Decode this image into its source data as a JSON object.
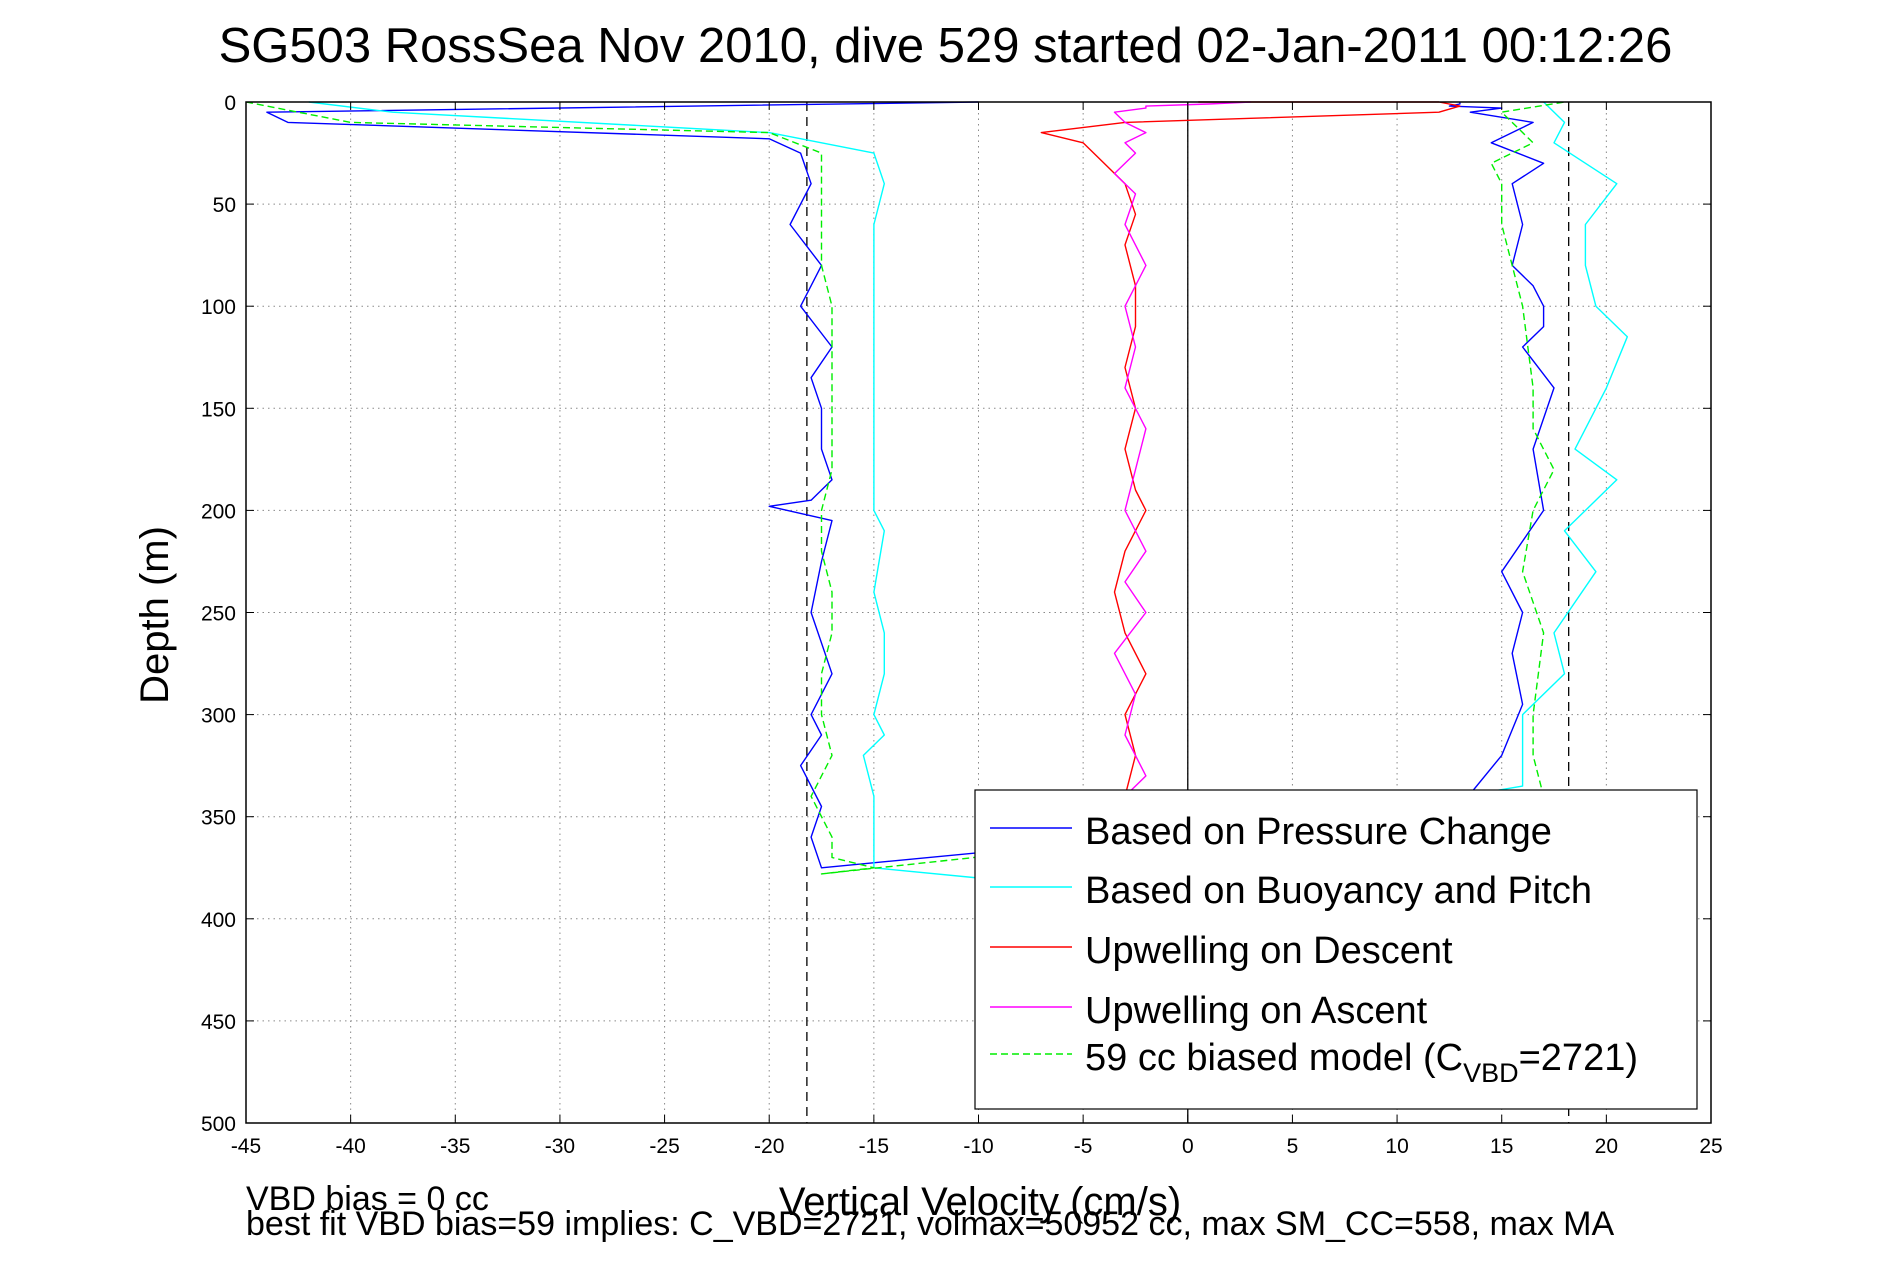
{
  "title": "SG503 RossSea Nov 2010, dive 529 started 02-Jan-2011 00:12:26",
  "footer_line1": "VBD bias = 0 cc",
  "footer_line2": "best fit VBD bias=59 implies: C_VBD=2721, volmax=50952 cc, max SM_CC=558, max MA",
  "chart_data": {
    "type": "line",
    "xlabel": "Vertical Velocity (cm/s)",
    "ylabel": "Depth (m)",
    "xlim": [
      -45,
      25
    ],
    "ylim": [
      0,
      500
    ],
    "y_reversed": true,
    "grid": true,
    "xticks": [
      -45,
      -40,
      -35,
      -30,
      -25,
      -20,
      -15,
      -10,
      -5,
      0,
      5,
      10,
      15,
      20,
      25
    ],
    "yticks": [
      0,
      50,
      100,
      150,
      200,
      250,
      300,
      350,
      400,
      450,
      500
    ],
    "legend_position": "lower-right",
    "reference_lines": [
      {
        "x": -18.2,
        "style": "dashed",
        "color": "#000000"
      },
      {
        "x": 18.2,
        "style": "dashed",
        "color": "#000000"
      },
      {
        "x": 0,
        "style": "solid",
        "color": "#000000"
      }
    ],
    "series": [
      {
        "name": "Based on Pressure Change",
        "color": "#0000ff",
        "style": "solid",
        "x": [
          -10,
          -44,
          -43,
          -20,
          -18.5,
          -18,
          -19,
          -17.5,
          -18.5,
          -17,
          -18,
          -17.5,
          -17.5,
          -17,
          -18,
          -20,
          -17,
          -17.5,
          -18,
          -17,
          -18,
          -17.5,
          -18.5,
          -17.5,
          -18,
          -17.5,
          13,
          15,
          16,
          15.5,
          16,
          15,
          17,
          16.5,
          17.5,
          16,
          17,
          17,
          16.5,
          15.5,
          16,
          15.5,
          17,
          14.5,
          16.5,
          13.5,
          15,
          12.5,
          13,
          13
        ],
        "y": [
          0,
          5,
          10,
          18,
          25,
          40,
          60,
          80,
          100,
          120,
          135,
          150,
          170,
          185,
          195,
          198,
          205,
          225,
          250,
          280,
          300,
          310,
          325,
          345,
          360,
          375,
          345,
          320,
          295,
          270,
          250,
          230,
          200,
          170,
          140,
          120,
          110,
          100,
          90,
          80,
          60,
          40,
          30,
          20,
          10,
          5,
          3,
          2,
          1,
          0
        ]
      },
      {
        "name": "Based on Buoyancy and Pitch",
        "color": "#00ffff",
        "style": "solid",
        "x": [
          -42,
          -38,
          -20,
          -15,
          -14.5,
          -15,
          -15,
          -15,
          -15,
          -15,
          -15,
          -15,
          -15,
          -14.5,
          -15,
          -14.5,
          -14.5,
          -15,
          -14.5,
          -15.5,
          -15,
          -15,
          -15,
          -10,
          16,
          16,
          16,
          18,
          17.5,
          19.5,
          18,
          20.5,
          18.5,
          20,
          21,
          19.5,
          19,
          19,
          20.5,
          17.5,
          18,
          17
        ],
        "y": [
          0,
          5,
          15,
          25,
          40,
          60,
          80,
          100,
          120,
          140,
          160,
          180,
          200,
          210,
          240,
          260,
          280,
          300,
          310,
          320,
          340,
          360,
          375,
          380,
          335,
          320,
          300,
          280,
          260,
          230,
          210,
          185,
          170,
          140,
          115,
          100,
          80,
          60,
          40,
          20,
          10,
          0
        ]
      },
      {
        "name": "Upwelling on Descent",
        "color": "#ff0000",
        "style": "solid",
        "x": [
          0.5,
          12,
          13,
          12,
          3,
          -3,
          -7,
          -5,
          -4,
          -3,
          -2.5,
          -3,
          -2.5,
          -2.5,
          -3,
          -2.5,
          -3,
          -2.5,
          -2,
          -3,
          -3.5,
          -3,
          -2,
          -3,
          -2.5,
          -3
        ],
        "y": [
          0,
          0,
          2,
          5,
          8,
          10,
          15,
          20,
          30,
          40,
          55,
          70,
          90,
          110,
          130,
          150,
          170,
          190,
          200,
          220,
          240,
          260,
          280,
          300,
          320,
          340
        ]
      },
      {
        "name": "Upwelling on Ascent",
        "color": "#ff00ff",
        "style": "solid",
        "x": [
          -3,
          -2,
          -3,
          -2.5,
          -3.5,
          -2,
          -3,
          -2,
          -3,
          -2.5,
          -2,
          -3,
          -2.5,
          -3,
          -2,
          -3,
          -2.5,
          -3.5,
          -2.5,
          -3,
          -2,
          -3,
          -3.5,
          -2,
          -2,
          1,
          3
        ],
        "y": [
          340,
          330,
          310,
          290,
          270,
          250,
          235,
          220,
          200,
          180,
          160,
          140,
          120,
          100,
          80,
          60,
          45,
          35,
          25,
          20,
          15,
          10,
          5,
          3,
          2,
          1,
          0
        ]
      },
      {
        "name": "59 cc biased model",
        "legend_parts": [
          "59 cc biased model (C",
          "VBD",
          "=2721)"
        ],
        "color": "#00ee00",
        "style": "dashed",
        "x": [
          -45,
          -40,
          -20,
          -17.5,
          -17.5,
          -17.5,
          -17.5,
          -17,
          -17,
          -17,
          -17,
          -17,
          -17.5,
          -17.5,
          -17,
          -17,
          -17.5,
          -17.5,
          -17,
          -18,
          -17,
          -17,
          -15,
          -17.5,
          17,
          16.5,
          16.5,
          17,
          16,
          16.5,
          17.5,
          16.5,
          16.5,
          16,
          15,
          15,
          14.5,
          16.5,
          15,
          18
        ],
        "y": [
          0,
          10,
          15,
          25,
          40,
          60,
          80,
          100,
          120,
          140,
          160,
          180,
          200,
          220,
          240,
          260,
          280,
          300,
          320,
          340,
          360,
          370,
          375,
          378,
          340,
          320,
          300,
          260,
          230,
          200,
          180,
          160,
          140,
          100,
          60,
          40,
          30,
          20,
          5,
          0
        ]
      }
    ]
  }
}
